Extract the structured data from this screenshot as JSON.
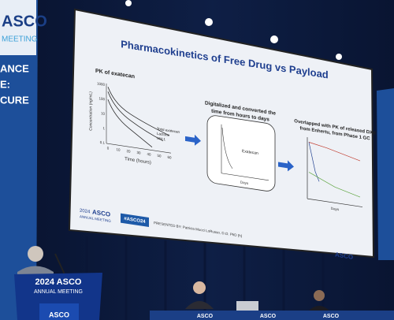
{
  "banner": {
    "logo": "ASCO",
    "sub": "MEETING",
    "lines": [
      "ANCE",
      "E:",
      "CURE"
    ]
  },
  "slide": {
    "title": "Pharmacokinetics of Free Drug vs Payload",
    "panels": [
      {
        "heading": "PK of exatecan",
        "y_axis": "Concentration (ng/mL)",
        "x_axis": "Time (hours)",
        "yticks": [
          "1000",
          "100",
          "10",
          "1",
          "0.1"
        ],
        "xticks": [
          "0",
          "10",
          "20",
          "30",
          "40",
          "50",
          "60"
        ],
        "legend": [
          "Total exatecan",
          "Lactone",
          "UM-1"
        ]
      },
      {
        "heading_lines": [
          "Digitalized and converted the",
          "time from hours to days"
        ],
        "legend": [
          "Exatecan"
        ],
        "x_axis": "Days"
      },
      {
        "heading_lines": [
          "Overlapped with PK of released DXd",
          "from Enhertu, from Phase 1 GC"
        ],
        "x_axis": "Days"
      }
    ],
    "footer": {
      "meeting_year": "2024",
      "meeting_logo": "ASCO",
      "meeting_sub": "ANNUAL MEETING",
      "hashtag": "#ASCO24",
      "presenter": "PRESENTED BY: Patricia Mucci LoRusso, D.O. PhD (h)",
      "logo": "ASCO"
    }
  },
  "podium": {
    "logo": "2024 ASCO",
    "sub": "ANNUAL MEETING",
    "front": "ASCO"
  },
  "table_signs": [
    "ASCO",
    "ASCO",
    "ASCO"
  ]
}
